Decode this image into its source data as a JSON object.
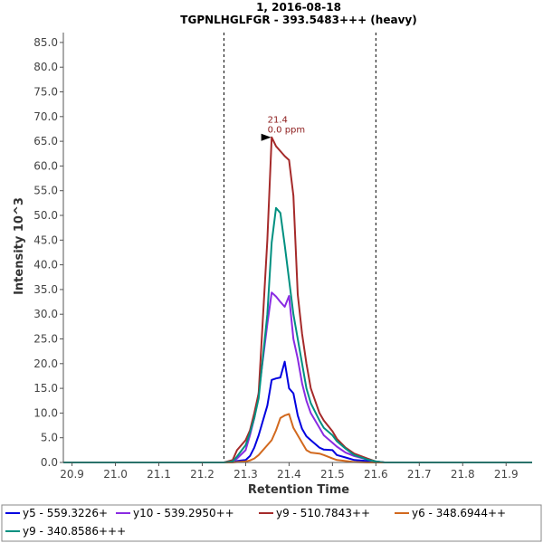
{
  "chart_data": {
    "type": "line",
    "title": "1, 2016-08-18",
    "subtitle": "TGPNLHGLFGR - 393.5483+++ (heavy)",
    "xlabel": "Retention Time",
    "ylabel": "Intensity 10^3",
    "xlim": [
      20.88,
      21.96
    ],
    "ylim": [
      0,
      87
    ],
    "x_ticks": [
      20.9,
      21.0,
      21.1,
      21.2,
      21.3,
      21.4,
      21.5,
      21.6,
      21.7,
      21.8,
      21.9
    ],
    "y_ticks": [
      0,
      5,
      10,
      15,
      20,
      25,
      30,
      35,
      40,
      45,
      50,
      55,
      60,
      65,
      70,
      75,
      80,
      85
    ],
    "grid": false,
    "legend_position": "bottom",
    "boundaries": [
      21.25,
      21.6
    ],
    "annotation": {
      "x": 21.365,
      "y": 65.8,
      "line1": "21.4",
      "line2": "0.0 ppm"
    },
    "x": [
      20.88,
      21.22,
      21.25,
      21.27,
      21.28,
      21.3,
      21.31,
      21.32,
      21.33,
      21.35,
      21.36,
      21.37,
      21.38,
      21.39,
      21.4,
      21.41,
      21.42,
      21.43,
      21.44,
      21.45,
      21.47,
      21.48,
      21.5,
      21.51,
      21.53,
      21.55,
      21.58,
      21.6,
      21.62,
      21.96
    ],
    "series": [
      {
        "name": "y5 - 559.3226+",
        "color": "#0000e0",
        "values": [
          0,
          0,
          0,
          0.1,
          0.3,
          0.5,
          1.3,
          3,
          5.5,
          11.5,
          16.7,
          17,
          17.2,
          20.4,
          15,
          14,
          9.5,
          6.8,
          5.3,
          4.5,
          3,
          2.6,
          2.5,
          1.5,
          1,
          0.5,
          0.3,
          0.1,
          0,
          0
        ]
      },
      {
        "name": "y10 - 539.2950++",
        "color": "#8a2be2",
        "values": [
          0,
          0,
          0,
          0.2,
          0.8,
          2.5,
          5.5,
          9,
          14,
          28,
          34.4,
          33.6,
          32.5,
          31.5,
          33.7,
          25,
          21,
          16,
          12.5,
          10,
          7,
          5.5,
          4,
          3.2,
          2,
          1.3,
          0.6,
          0.2,
          0,
          0
        ]
      },
      {
        "name": "y9 - 510.7843++",
        "color": "#a52a2a",
        "values": [
          0,
          0,
          0,
          0.5,
          2.5,
          4.5,
          6.5,
          10,
          14,
          45,
          65.8,
          64,
          63,
          62,
          61.2,
          54,
          34,
          26,
          20,
          15,
          10,
          8.5,
          6.3,
          4.8,
          3,
          1.8,
          0.8,
          0.2,
          0,
          0
        ]
      },
      {
        "name": "y6 - 348.6944++",
        "color": "#d2691e",
        "values": [
          0,
          0,
          0,
          0,
          0.1,
          0.2,
          0.4,
          0.8,
          1.5,
          3.5,
          4.5,
          6.5,
          9,
          9.5,
          9.8,
          7,
          5.5,
          4,
          2.5,
          2,
          1.8,
          1.5,
          0.8,
          0.5,
          0.3,
          0.1,
          0,
          0,
          0,
          0
        ]
      },
      {
        "name": "y9 - 340.8586+++",
        "color": "#009080",
        "values": [
          0,
          0,
          0,
          0.2,
          1.2,
          3.5,
          6,
          9,
          13,
          30,
          44.5,
          51.5,
          50.5,
          44,
          37,
          30,
          25,
          20,
          15,
          12,
          8.5,
          7,
          5.5,
          4.3,
          2.8,
          1.5,
          0.6,
          0.2,
          0,
          0
        ]
      }
    ]
  }
}
